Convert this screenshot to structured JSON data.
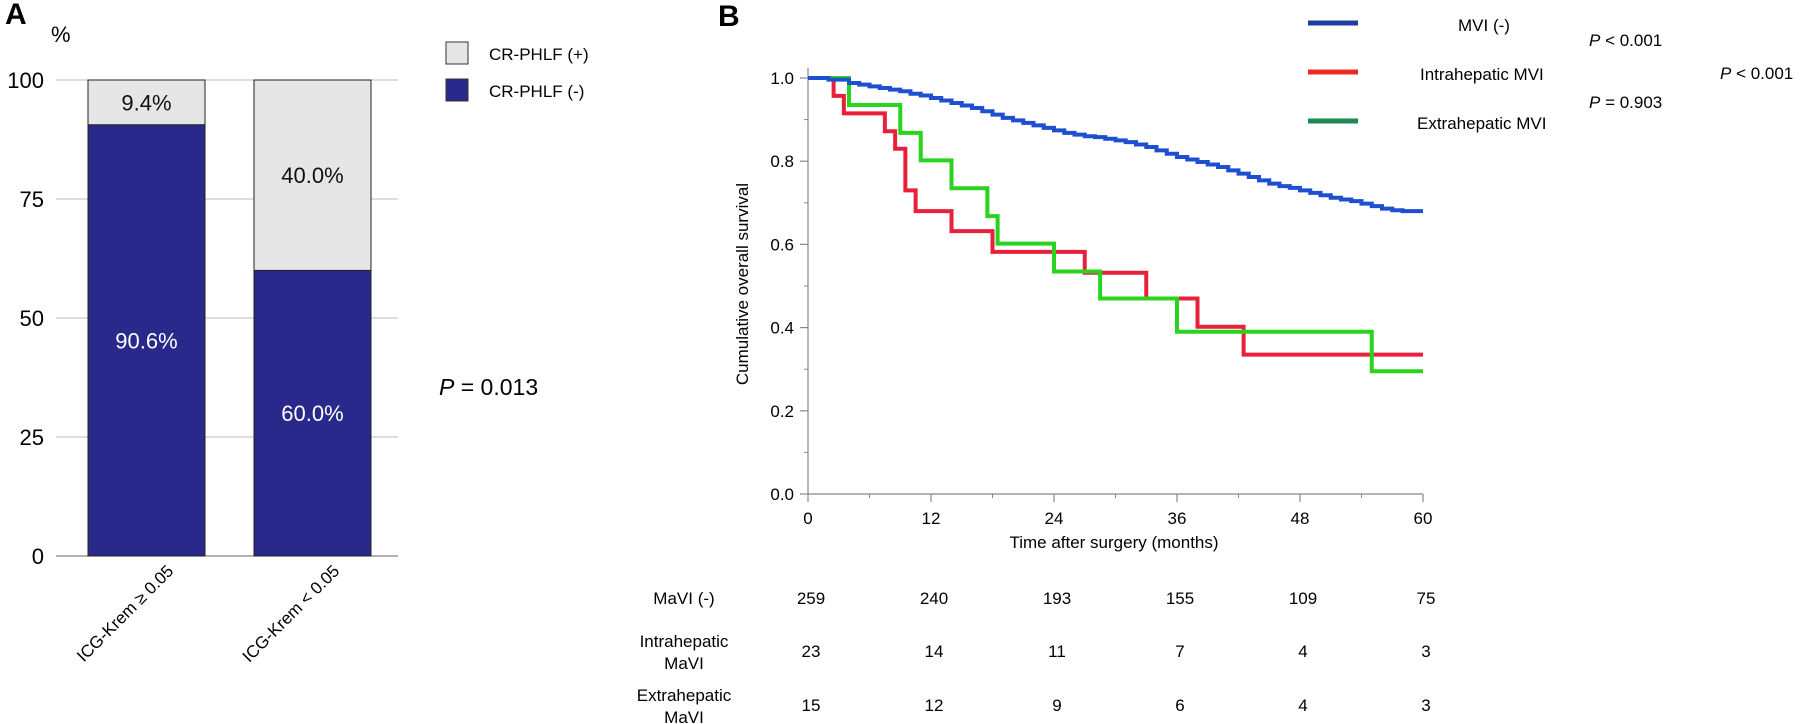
{
  "panel_a": {
    "label": "A",
    "unit": "%",
    "p_italic": "P",
    "p_rest": " = 0.013",
    "chart_data": {
      "type": "bar",
      "stacked": true,
      "categories": [
        "ICG-Krem ≥ 0.05",
        "ICG-Krem < 0.05"
      ],
      "series": [
        {
          "name": "CR-PHLF (-)",
          "values": [
            90.6,
            60.0
          ],
          "labels": [
            "90.6%",
            "60.0%"
          ],
          "color": "#28298a"
        },
        {
          "name": "CR-PHLF (+)",
          "values": [
            9.4,
            40.0
          ],
          "labels": [
            "9.4%",
            "40.0%"
          ],
          "color": "#e6e6e6"
        }
      ],
      "ylim": [
        0,
        100
      ],
      "yticks": [
        0,
        25,
        50,
        75,
        100
      ],
      "grid": true,
      "legend": [
        {
          "name": "CR-PHLF (+)",
          "color": "#e6e6e6"
        },
        {
          "name": "CR-PHLF (-)",
          "color": "#28298a"
        }
      ],
      "legend_position": "top-right"
    }
  },
  "panel_b": {
    "label": "B",
    "chart_data": {
      "type": "line",
      "step": true,
      "xlabel": "Time after surgery (months)",
      "ylabel": "Cumulative overall survival",
      "xlim": [
        0,
        60
      ],
      "ylim": [
        0,
        1.0
      ],
      "xticks": [
        0,
        12,
        24,
        36,
        48,
        60
      ],
      "yticks": [
        "0.0",
        "0.2",
        "0.4",
        "0.6",
        "0.8",
        "1.0"
      ],
      "legend_position": "top-right",
      "series": [
        {
          "name": "MVI (-)",
          "legend_color": "#1f3ea0",
          "color": "#1e4fd0",
          "points": [
            [
              0,
              1.0
            ],
            [
              2,
              0.996
            ],
            [
              4,
              0.988
            ],
            [
              5,
              0.984
            ],
            [
              6,
              0.98
            ],
            [
              7,
              0.976
            ],
            [
              8,
              0.972
            ],
            [
              9,
              0.968
            ],
            [
              10,
              0.962
            ],
            [
              11,
              0.958
            ],
            [
              12,
              0.952
            ],
            [
              13,
              0.946
            ],
            [
              14,
              0.94
            ],
            [
              15,
              0.934
            ],
            [
              16,
              0.928
            ],
            [
              17,
              0.92
            ],
            [
              18,
              0.912
            ],
            [
              19,
              0.904
            ],
            [
              20,
              0.898
            ],
            [
              21,
              0.892
            ],
            [
              22,
              0.886
            ],
            [
              23,
              0.88
            ],
            [
              24,
              0.874
            ],
            [
              25,
              0.868
            ],
            [
              26,
              0.864
            ],
            [
              27,
              0.86
            ],
            [
              28,
              0.858
            ],
            [
              29,
              0.854
            ],
            [
              30,
              0.85
            ],
            [
              31,
              0.846
            ],
            [
              32,
              0.84
            ],
            [
              33,
              0.834
            ],
            [
              34,
              0.826
            ],
            [
              35,
              0.818
            ],
            [
              36,
              0.81
            ],
            [
              37,
              0.804
            ],
            [
              38,
              0.798
            ],
            [
              39,
              0.792
            ],
            [
              40,
              0.786
            ],
            [
              41,
              0.778
            ],
            [
              42,
              0.77
            ],
            [
              43,
              0.762
            ],
            [
              44,
              0.754
            ],
            [
              45,
              0.746
            ],
            [
              46,
              0.74
            ],
            [
              47,
              0.736
            ],
            [
              48,
              0.73
            ],
            [
              49,
              0.724
            ],
            [
              50,
              0.718
            ],
            [
              51,
              0.712
            ],
            [
              52,
              0.708
            ],
            [
              53,
              0.704
            ],
            [
              54,
              0.698
            ],
            [
              55,
              0.692
            ],
            [
              56,
              0.686
            ],
            [
              57,
              0.682
            ],
            [
              58,
              0.68
            ],
            [
              60,
              0.68
            ]
          ]
        },
        {
          "name": "Intrahepatic MVI",
          "legend_color": "#ee2a24",
          "color": "#e8203c",
          "points": [
            [
              0,
              1.0
            ],
            [
              2.5,
              0.957
            ],
            [
              3.5,
              0.915
            ],
            [
              7.5,
              0.872
            ],
            [
              8.5,
              0.83
            ],
            [
              9.5,
              0.73
            ],
            [
              10.5,
              0.68
            ],
            [
              14,
              0.632
            ],
            [
              18,
              0.582
            ],
            [
              24,
              0.582
            ],
            [
              27,
              0.532
            ],
            [
              32,
              0.532
            ],
            [
              33,
              0.47
            ],
            [
              37,
              0.47
            ],
            [
              38,
              0.402
            ],
            [
              42.5,
              0.402
            ],
            [
              42.5,
              0.335
            ],
            [
              60,
              0.335
            ]
          ]
        },
        {
          "name": "Extrahepatic MVI",
          "legend_color": "#1a8c50",
          "color": "#2ad31e",
          "points": [
            [
              0,
              1.0
            ],
            [
              3.5,
              1.0
            ],
            [
              4,
              0.935
            ],
            [
              9,
              0.935
            ],
            [
              9,
              0.868
            ],
            [
              11,
              0.868
            ],
            [
              11,
              0.802
            ],
            [
              14,
              0.802
            ],
            [
              14,
              0.735
            ],
            [
              17.5,
              0.735
            ],
            [
              17.5,
              0.668
            ],
            [
              18.5,
              0.668
            ],
            [
              18.5,
              0.602
            ],
            [
              24,
              0.602
            ],
            [
              24,
              0.535
            ],
            [
              28.5,
              0.535
            ],
            [
              28.5,
              0.47
            ],
            [
              36,
              0.47
            ],
            [
              36,
              0.39
            ],
            [
              55,
              0.39
            ],
            [
              55,
              0.295
            ],
            [
              60,
              0.295
            ]
          ]
        }
      ],
      "p_values": [
        {
          "italic": "P",
          "rest": " < 0.001"
        },
        {
          "italic": "P",
          "rest": " = 0.903"
        },
        {
          "italic": "P",
          "rest": " < 0.001"
        }
      ]
    },
    "risk_table": {
      "times": [
        0,
        12,
        24,
        36,
        48,
        60
      ],
      "rows": [
        {
          "label_lines": [
            "MaVI (-)"
          ],
          "values": [
            "259",
            "240",
            "193",
            "155",
            "109",
            "75"
          ]
        },
        {
          "label_lines": [
            "Intrahepatic",
            "MaVI"
          ],
          "values": [
            "23",
            "14",
            "11",
            "7",
            "4",
            "3"
          ]
        },
        {
          "label_lines": [
            "Extrahepatic",
            "MaVI"
          ],
          "values": [
            "15",
            "12",
            "9",
            "6",
            "4",
            "3"
          ]
        }
      ]
    }
  }
}
